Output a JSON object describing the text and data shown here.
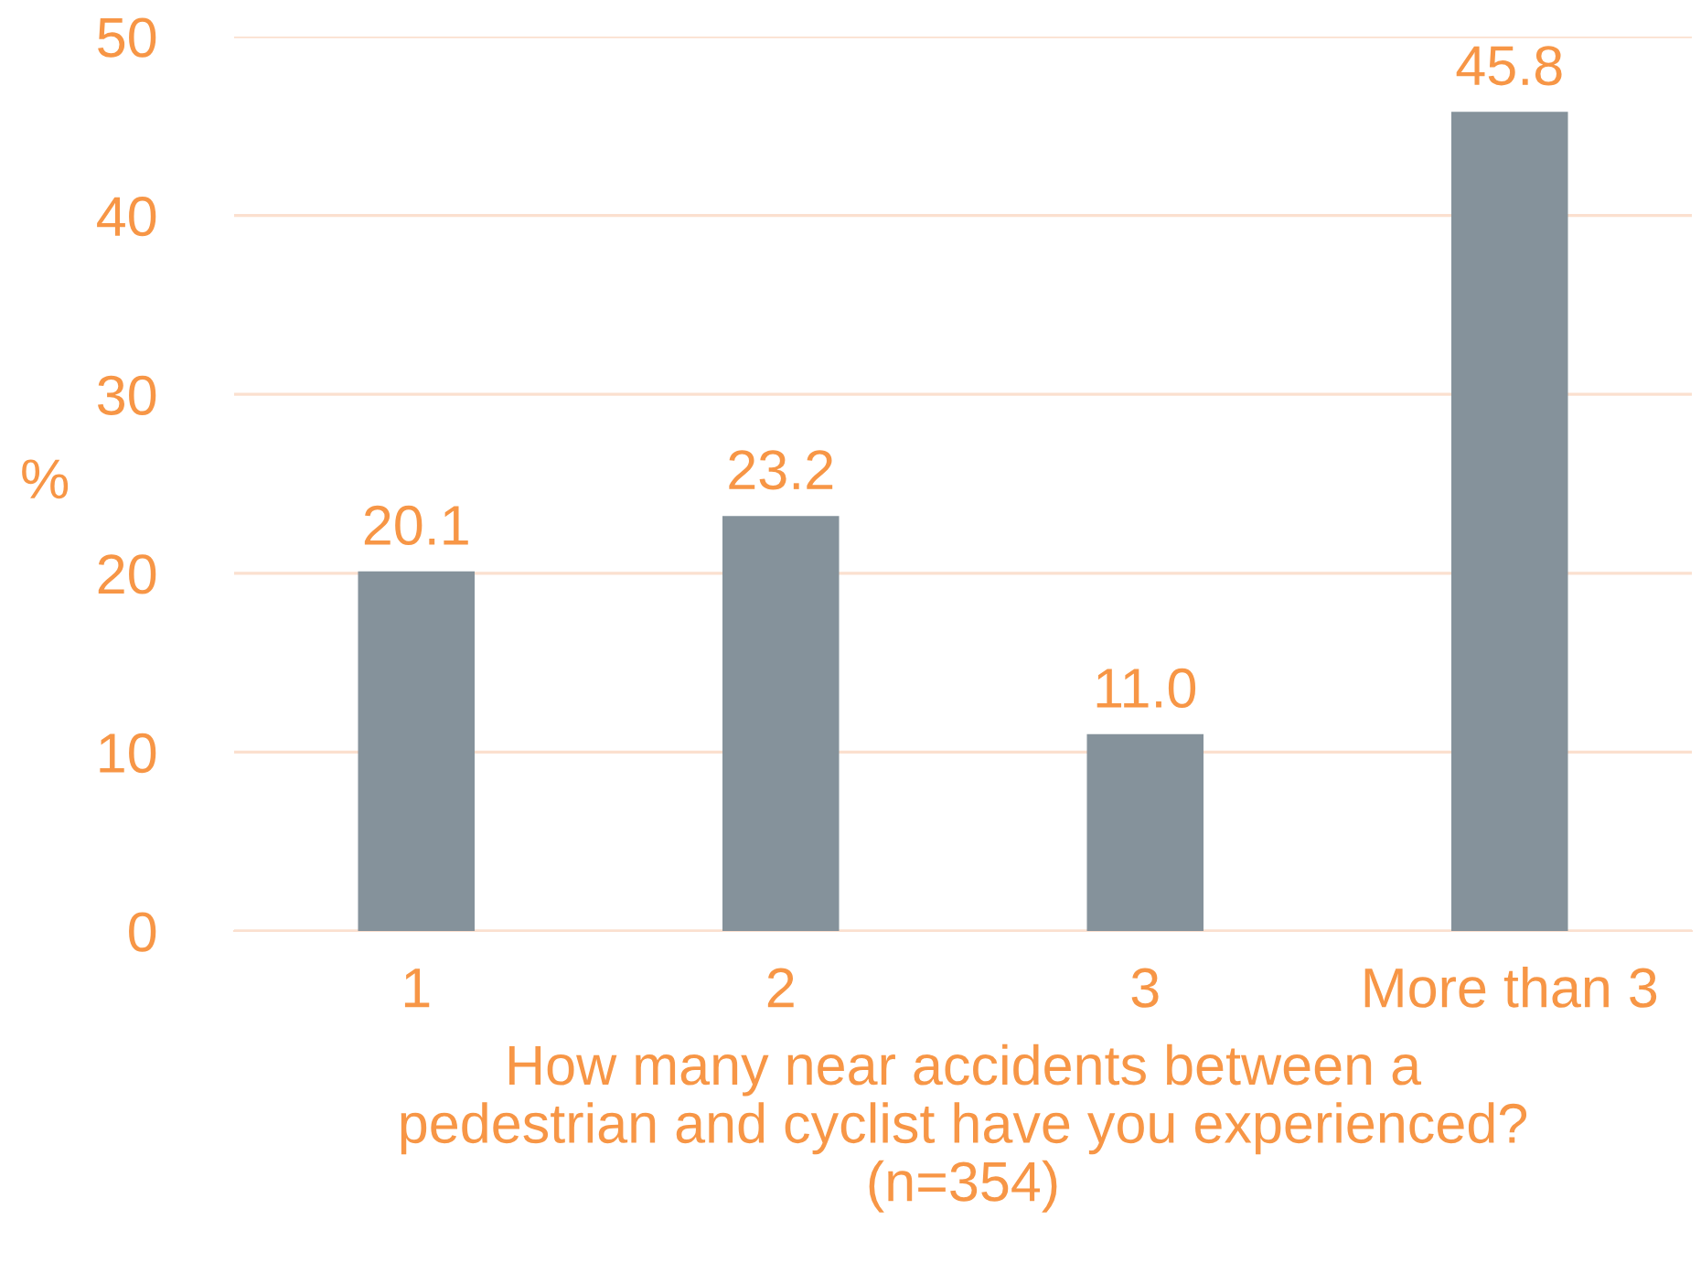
{
  "chart_data": {
    "type": "bar",
    "categories": [
      "1",
      "2",
      "3",
      "More than 3"
    ],
    "values": [
      20.1,
      23.2,
      11.0,
      45.8
    ],
    "value_labels": [
      "20.1",
      "23.2",
      "11.0",
      "45.8"
    ],
    "color": "#85929b",
    "ylabel": "%",
    "xlabel": "How many near accidents between a\npedestrian and cyclist have you experienced?\n(n=354)",
    "ylim": [
      0,
      50
    ],
    "yticks": [
      0,
      10,
      20,
      30,
      40,
      50
    ],
    "grid": "y",
    "legend": false
  }
}
